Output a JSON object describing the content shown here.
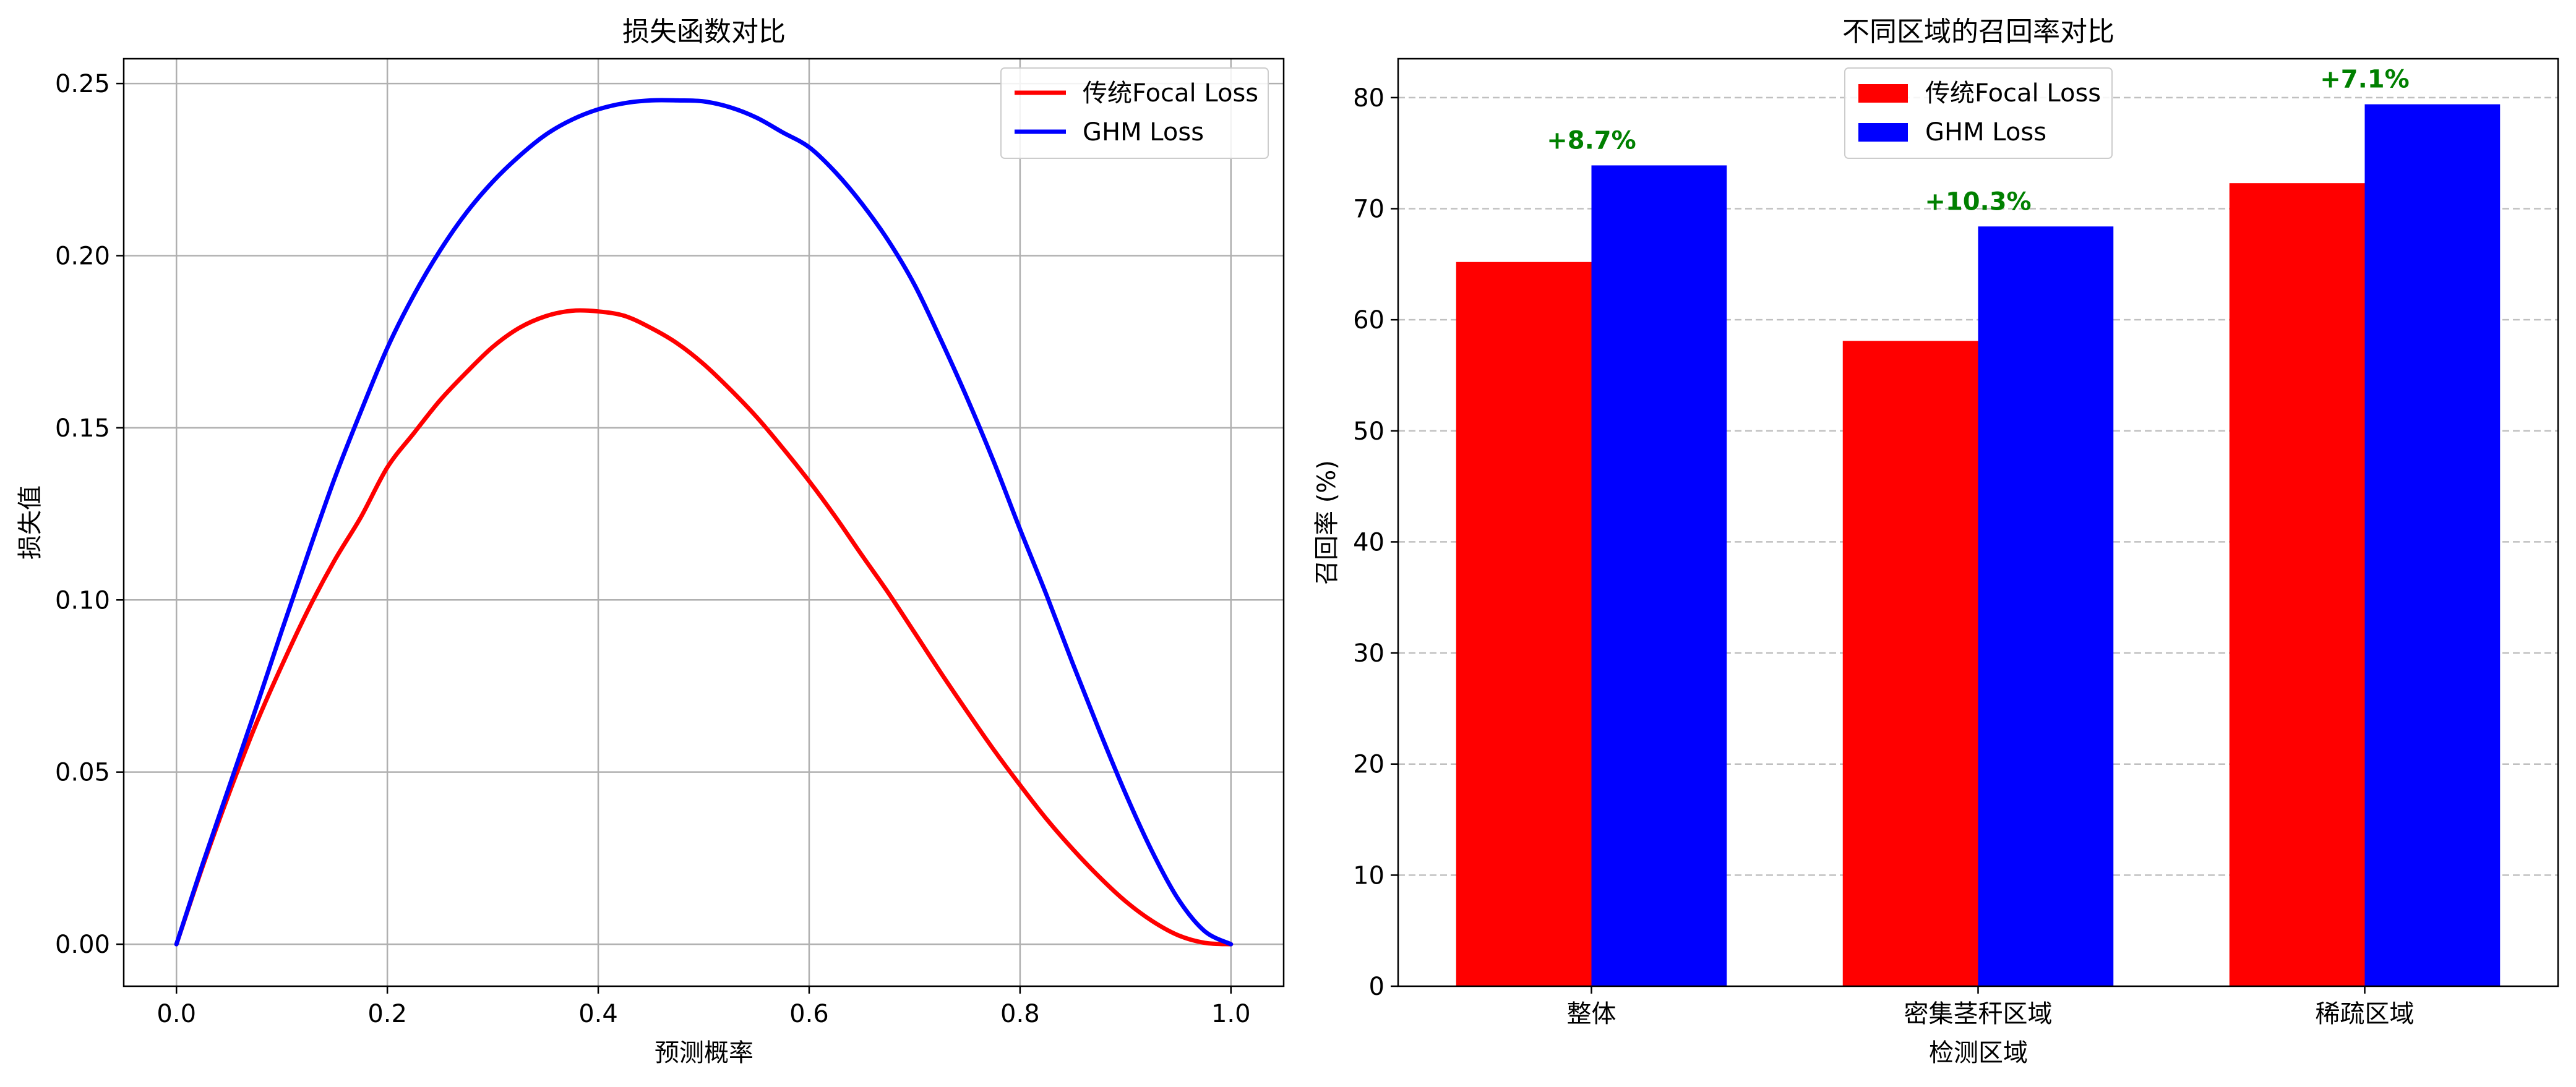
{
  "colors": {
    "focal": "#ff0000",
    "ghm": "#0000ff",
    "improvement": "#008000",
    "grid": "#b0b0b0",
    "axis": "#000000",
    "background": "#ffffff"
  },
  "chart_data": [
    {
      "type": "line",
      "title": "损失函数对比",
      "xlabel": "预测概率",
      "ylabel": "损失值",
      "xlim": [
        -0.05,
        1.05
      ],
      "ylim": [
        -0.0122,
        0.2572
      ],
      "xticks": [
        0.0,
        0.2,
        0.4,
        0.6,
        0.8,
        1.0
      ],
      "xtick_labels": [
        "0.0",
        "0.2",
        "0.4",
        "0.6",
        "0.8",
        "1.0"
      ],
      "yticks": [
        0.0,
        0.05,
        0.1,
        0.15,
        0.2,
        0.25
      ],
      "ytick_labels": [
        "0.00",
        "0.05",
        "0.10",
        "0.15",
        "0.20",
        "0.25"
      ],
      "grid": true,
      "legend_position": "top-right",
      "legend": [
        "传统Focal Loss",
        "GHM Loss"
      ],
      "series": [
        {
          "name": "传统Focal Loss",
          "color": "#ff0000",
          "x": [
            0.0,
            0.025,
            0.05,
            0.075,
            0.1,
            0.125,
            0.15,
            0.175,
            0.2,
            0.225,
            0.25,
            0.275,
            0.3,
            0.325,
            0.35,
            0.375,
            0.4,
            0.425,
            0.45,
            0.475,
            0.5,
            0.525,
            0.55,
            0.575,
            0.6,
            0.625,
            0.65,
            0.675,
            0.7,
            0.725,
            0.75,
            0.775,
            0.8,
            0.825,
            0.85,
            0.875,
            0.9,
            0.925,
            0.95,
            0.975,
            1.0
          ],
          "values": [
            0.0,
            0.0227,
            0.0439,
            0.0636,
            0.081,
            0.0972,
            0.1115,
            0.1241,
            0.1385,
            0.1484,
            0.158,
            0.1661,
            0.1735,
            0.179,
            0.1824,
            0.184,
            0.1838,
            0.1825,
            0.179,
            0.1745,
            0.1685,
            0.1612,
            0.1532,
            0.1441,
            0.1345,
            0.1241,
            0.113,
            0.1021,
            0.0905,
            0.0788,
            0.0675,
            0.0565,
            0.0462,
            0.0364,
            0.0276,
            0.0196,
            0.0125,
            0.0068,
            0.0026,
            0.0004,
            0.0
          ]
        },
        {
          "name": "GHM Loss",
          "color": "#0000ff",
          "x": [
            0.0,
            0.025,
            0.05,
            0.075,
            0.1,
            0.125,
            0.15,
            0.175,
            0.2,
            0.225,
            0.25,
            0.275,
            0.3,
            0.325,
            0.35,
            0.375,
            0.4,
            0.425,
            0.45,
            0.475,
            0.5,
            0.525,
            0.55,
            0.575,
            0.6,
            0.625,
            0.65,
            0.675,
            0.7,
            0.725,
            0.75,
            0.775,
            0.8,
            0.825,
            0.85,
            0.875,
            0.9,
            0.925,
            0.95,
            0.975,
            1.0
          ],
          "values": [
            0.0,
            0.0234,
            0.0458,
            0.0682,
            0.0912,
            0.1136,
            0.1353,
            0.1548,
            0.1732,
            0.1885,
            0.2015,
            0.2125,
            0.2215,
            0.2289,
            0.2351,
            0.2395,
            0.2425,
            0.2443,
            0.2451,
            0.2451,
            0.2448,
            0.2431,
            0.2401,
            0.2358,
            0.2315,
            0.2242,
            0.2151,
            0.2044,
            0.1915,
            0.1755,
            0.1585,
            0.1402,
            0.1205,
            0.1015,
            0.0815,
            0.0622,
            0.0438,
            0.0271,
            0.0131,
            0.0038,
            0.0
          ]
        }
      ]
    },
    {
      "type": "bar",
      "title": "不同区域的召回率对比",
      "xlabel": "检测区域",
      "ylabel": "召回率 (%)",
      "categories": [
        "整体",
        "密集茎秆区域",
        "稀疏区域"
      ],
      "ylim": [
        0,
        83.5
      ],
      "yticks": [
        0,
        10,
        20,
        30,
        40,
        50,
        60,
        70,
        80
      ],
      "ytick_labels": [
        "0",
        "10",
        "20",
        "30",
        "40",
        "50",
        "60",
        "70",
        "80"
      ],
      "grid": "horizontal-dashed",
      "legend_position": "top-center",
      "legend": [
        "传统Focal Loss",
        "GHM Loss"
      ],
      "series": [
        {
          "name": "传统Focal Loss",
          "color": "#ff0000",
          "values": [
            65.2,
            58.1,
            72.3
          ]
        },
        {
          "name": "GHM Loss",
          "color": "#0000ff",
          "values": [
            73.9,
            68.4,
            79.4
          ]
        }
      ],
      "annotations": [
        "+8.7%",
        "+10.3%",
        "+7.1%"
      ]
    }
  ]
}
